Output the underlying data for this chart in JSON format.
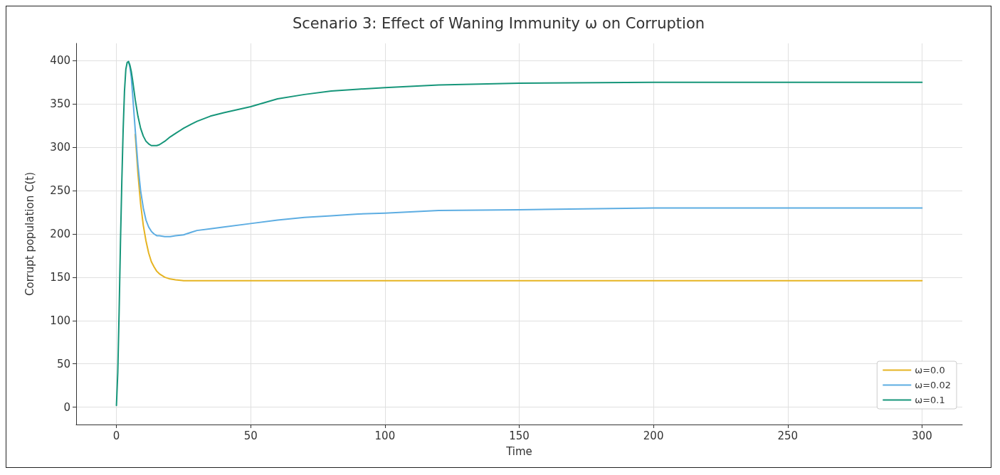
{
  "chart_data": {
    "type": "line",
    "title": "Scenario 3: Effect of Waning Immunity ω on Corruption",
    "xlabel": "Time",
    "ylabel": "Corrupt population C(t)",
    "x": [
      0,
      0.5,
      1,
      1.5,
      2,
      2.5,
      3,
      3.5,
      4,
      4.5,
      5,
      5.5,
      6,
      7,
      8,
      9,
      10,
      11,
      12,
      13,
      14,
      15,
      16,
      18,
      20,
      22,
      25,
      28,
      30,
      35,
      40,
      50,
      60,
      70,
      80,
      90,
      100,
      120,
      150,
      200,
      250,
      300
    ],
    "series": [
      {
        "name": "ω=0.0",
        "color": "#e6b422",
        "values": [
          null,
          null,
          null,
          null,
          null,
          null,
          null,
          null,
          null,
          null,
          null,
          null,
          null,
          315,
          270,
          235,
          210,
          192,
          178,
          168,
          162,
          157,
          154,
          150,
          148,
          147,
          146,
          146,
          146,
          146,
          146,
          146,
          146,
          146,
          146,
          146,
          146,
          146,
          146,
          146,
          146,
          146
        ]
      },
      {
        "name": "ω=0.02",
        "color": "#5dade2",
        "values": [
          null,
          null,
          null,
          null,
          null,
          null,
          null,
          null,
          null,
          399,
          393,
          382,
          362,
          320,
          280,
          250,
          230,
          216,
          208,
          203,
          200,
          198,
          198,
          197,
          197,
          198,
          199,
          202,
          204,
          206,
          208,
          212,
          216,
          219,
          221,
          223,
          224,
          227,
          228,
          230,
          230,
          230
        ]
      },
      {
        "name": "ω=0.1",
        "color": "#16967a",
        "values": [
          2,
          40,
          110,
          190,
          260,
          320,
          365,
          390,
          398,
          399,
          395,
          388,
          378,
          355,
          336,
          322,
          313,
          307,
          304,
          302,
          302,
          302,
          303,
          307,
          312,
          316,
          322,
          327,
          330,
          336,
          340,
          347,
          356,
          361,
          365,
          367,
          369,
          372,
          374,
          375,
          375,
          375
        ]
      }
    ],
    "xlim": [
      -15,
      315
    ],
    "xticks": [
      0,
      50,
      100,
      150,
      200,
      250,
      300
    ],
    "ylim": [
      -20,
      420
    ],
    "yticks": [
      0,
      50,
      100,
      150,
      200,
      250,
      300,
      350,
      400
    ],
    "grid": true,
    "legend": "bottom right",
    "marker": "none",
    "line_style": "solid"
  }
}
